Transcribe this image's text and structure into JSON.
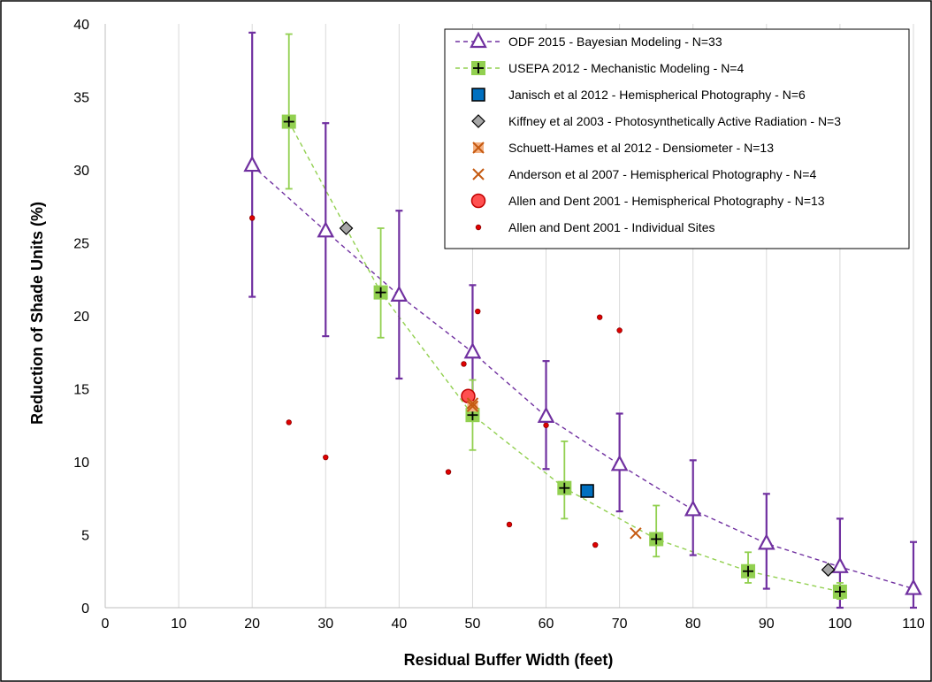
{
  "chart_data": {
    "type": "scatter",
    "xlabel": "Residual Buffer Width (feet)",
    "ylabel": "Reduction of Shade Units (%)",
    "xlim": [
      0,
      110
    ],
    "ylim": [
      0,
      40
    ],
    "xticks": [
      0,
      10,
      20,
      30,
      40,
      50,
      60,
      70,
      80,
      90,
      100,
      110
    ],
    "yticks": [
      0,
      5,
      10,
      15,
      20,
      25,
      30,
      35,
      40
    ],
    "grid": "vertical",
    "legend_position": "top-right",
    "series": [
      {
        "name": "ODF 2015 - Bayesian Modeling - N=33",
        "marker": "triangle",
        "color": "#7030a0",
        "line": "dashed",
        "points": [
          {
            "x": 20,
            "y": 30.3,
            "lo": 21.3,
            "hi": 39.4
          },
          {
            "x": 30,
            "y": 25.8,
            "lo": 18.6,
            "hi": 33.2
          },
          {
            "x": 40,
            "y": 21.4,
            "lo": 15.7,
            "hi": 27.2
          },
          {
            "x": 50,
            "y": 17.5,
            "lo": 13.5,
            "hi": 22.1
          },
          {
            "x": 60,
            "y": 13.1,
            "lo": 9.5,
            "hi": 16.9
          },
          {
            "x": 70,
            "y": 9.8,
            "lo": 6.6,
            "hi": 13.3
          },
          {
            "x": 80,
            "y": 6.7,
            "lo": 3.6,
            "hi": 10.1
          },
          {
            "x": 90,
            "y": 4.4,
            "lo": 1.3,
            "hi": 7.8
          },
          {
            "x": 100,
            "y": 2.8,
            "lo": 0.0,
            "hi": 6.1
          },
          {
            "x": 110,
            "y": 1.3,
            "lo": 0.0,
            "hi": 4.5
          }
        ]
      },
      {
        "name": "USEPA 2012 - Mechanistic Modeling - N=4",
        "marker": "plus-square",
        "color": "#92d050",
        "line": "dashed",
        "points": [
          {
            "x": 25,
            "y": 33.3,
            "lo": 28.7,
            "hi": 39.3
          },
          {
            "x": 37.5,
            "y": 21.6,
            "lo": 18.5,
            "hi": 26.0
          },
          {
            "x": 50,
            "y": 13.2,
            "lo": 10.8,
            "hi": 15.6
          },
          {
            "x": 62.5,
            "y": 8.2,
            "lo": 6.1,
            "hi": 11.4
          },
          {
            "x": 75,
            "y": 4.7,
            "lo": 3.5,
            "hi": 7.0
          },
          {
            "x": 87.5,
            "y": 2.5,
            "lo": 1.7,
            "hi": 3.8
          },
          {
            "x": 100,
            "y": 1.1,
            "lo": 0.6,
            "hi": 1.7
          }
        ]
      },
      {
        "name": "Janisch et al 2012 - Hemispherical Photography - N=6",
        "marker": "square",
        "color": "#0070c0",
        "points": [
          {
            "x": 65.6,
            "y": 8.0
          }
        ]
      },
      {
        "name": "Kiffney et al 2003 - Photosynthetically Active Radiation - N=3",
        "marker": "diamond",
        "color": "#a6a6a6",
        "points": [
          {
            "x": 32.8,
            "y": 26.0
          },
          {
            "x": 98.4,
            "y": 2.6
          }
        ]
      },
      {
        "name": "Schuett-Hames et al 2012 - Densiometer - N=13",
        "marker": "x-square",
        "color": "#c55a11",
        "points": [
          {
            "x": 50,
            "y": 13.8
          }
        ]
      },
      {
        "name": "Anderson et al 2007 - Hemispherical Photography - N=4",
        "marker": "x",
        "color": "#c55a11",
        "points": [
          {
            "x": 50,
            "y": 14.0
          },
          {
            "x": 72.2,
            "y": 5.1
          }
        ]
      },
      {
        "name": "Allen and Dent 2001 - Hemispherical Photography - N=13",
        "marker": "circle-large",
        "color": "#ff5050",
        "points": [
          {
            "x": 49.4,
            "y": 14.5
          }
        ]
      },
      {
        "name": "Allen and Dent 2001 - Individual Sites",
        "marker": "circle-small",
        "color": "#e00000",
        "points": [
          {
            "x": 20,
            "y": 26.7
          },
          {
            "x": 25,
            "y": 12.7
          },
          {
            "x": 30,
            "y": 10.3
          },
          {
            "x": 46.7,
            "y": 9.3
          },
          {
            "x": 48.8,
            "y": 16.7
          },
          {
            "x": 50,
            "y": 17.7
          },
          {
            "x": 50,
            "y": 13.5
          },
          {
            "x": 50.7,
            "y": 20.3
          },
          {
            "x": 55,
            "y": 5.7
          },
          {
            "x": 60,
            "y": 12.5
          },
          {
            "x": 66.7,
            "y": 4.3
          },
          {
            "x": 67.3,
            "y": 19.9
          },
          {
            "x": 70,
            "y": 19.0
          }
        ]
      }
    ]
  }
}
